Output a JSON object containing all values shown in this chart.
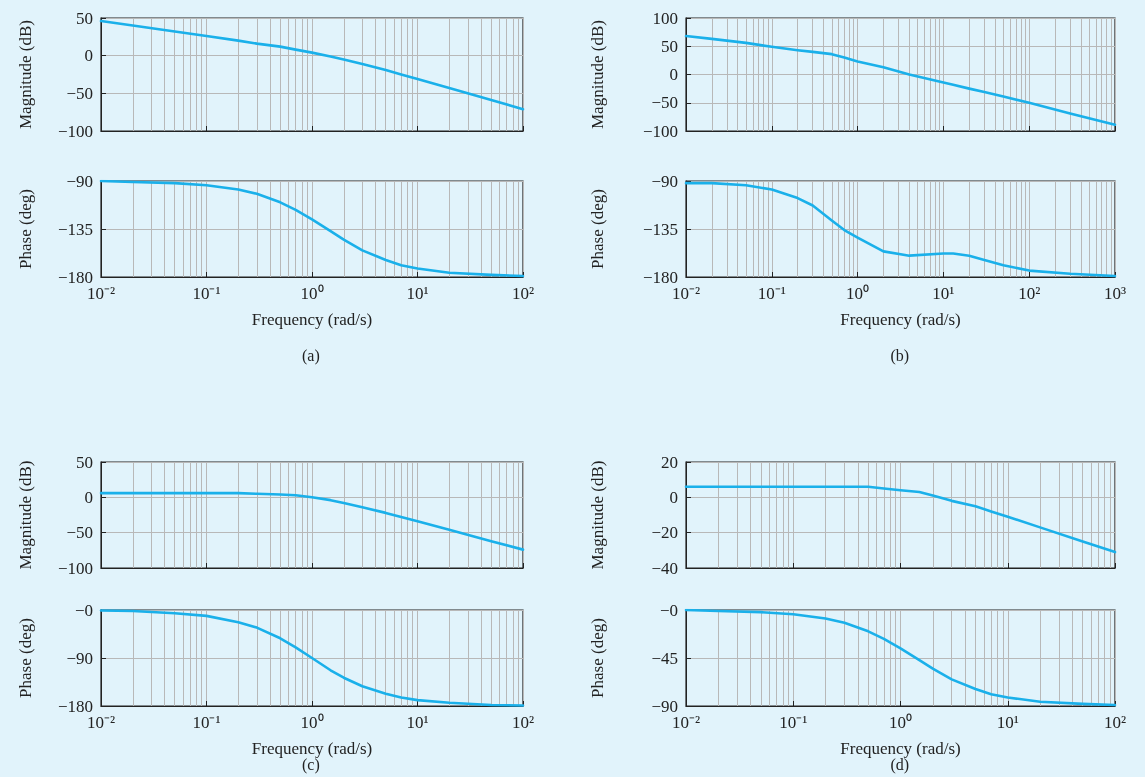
{
  "chart_data": [
    {
      "type": "line",
      "ylabel": "Magnitude (dB)",
      "log": "x",
      "grid": true,
      "marker": "none",
      "tick_labels": "y",
      "xlim": [
        0.01,
        100
      ],
      "xticks": [
        {
          "value": 0.01,
          "label": null
        },
        {
          "value": 0.1,
          "label": null
        },
        {
          "value": 1,
          "label": null
        },
        {
          "value": 10,
          "label": null
        },
        {
          "value": 100,
          "label": null
        }
      ],
      "ylim": [
        -100,
        50
      ],
      "yticks": [
        {
          "value": -100,
          "label": "−100"
        },
        {
          "value": -50,
          "label": "−50"
        },
        0,
        50
      ],
      "x": [
        0.01,
        0.02,
        0.05,
        0.1,
        0.2,
        0.3,
        0.5,
        0.7,
        1,
        1.5,
        2,
        3,
        5,
        7,
        10,
        20,
        50,
        100
      ],
      "series": [
        {
          "color": "#1ab0ea",
          "values": [
            46,
            40,
            32,
            26,
            20,
            16,
            12,
            8,
            4,
            -1,
            -5,
            -11,
            -19,
            -25,
            -31,
            -43,
            -59,
            -71
          ]
        }
      ]
    },
    {
      "type": "line",
      "ylabel": "Phase (deg)",
      "xlabel": "Frequency (rad/s)",
      "annotations": [
        "(a)"
      ],
      "log": "x",
      "grid": true,
      "marker": "none",
      "xlim": [
        0.01,
        100
      ],
      "xticks": [
        {
          "value": 0.01,
          "label": "10⁻²"
        },
        {
          "value": 0.1,
          "label": "10⁻¹"
        },
        {
          "value": 1,
          "label": "10⁰"
        },
        {
          "value": 10,
          "label": "10¹"
        },
        {
          "value": 100,
          "label": "10²"
        }
      ],
      "ylim": [
        -180,
        -90
      ],
      "yticks": [
        {
          "value": -180,
          "label": "−180"
        },
        {
          "value": -135,
          "label": "−135"
        },
        {
          "value": -90,
          "label": "−90"
        }
      ],
      "x": [
        0.01,
        0.02,
        0.05,
        0.1,
        0.2,
        0.3,
        0.5,
        0.7,
        1,
        1.5,
        2,
        3,
        5,
        7,
        10,
        20,
        50,
        100
      ],
      "series": [
        {
          "color": "#1ab0ea",
          "values": [
            -90,
            -91,
            -92,
            -94,
            -98,
            -102,
            -110,
            -117,
            -126,
            -137,
            -145,
            -155,
            -164,
            -169,
            -172,
            -176,
            -178,
            -179
          ]
        }
      ]
    },
    {
      "type": "line",
      "ylabel": "Magnitude (dB)",
      "log": "x",
      "grid": true,
      "marker": "none",
      "tick_labels": "y",
      "xlim": [
        0.01,
        1000
      ],
      "xticks": [
        {
          "value": 0.01,
          "label": null
        },
        {
          "value": 0.1,
          "label": null
        },
        {
          "value": 1,
          "label": null
        },
        {
          "value": 10,
          "label": null
        },
        {
          "value": 100,
          "label": null
        },
        {
          "value": 1000,
          "label": null
        }
      ],
      "ylim": [
        -100,
        100
      ],
      "yticks": [
        {
          "value": -100,
          "label": "−100"
        },
        {
          "value": -50,
          "label": "−50"
        },
        0,
        50,
        100
      ],
      "x": [
        0.01,
        0.02,
        0.05,
        0.1,
        0.2,
        0.3,
        0.5,
        0.7,
        1,
        2,
        4,
        10,
        13,
        20,
        30,
        50,
        100,
        300,
        1000
      ],
      "series": [
        {
          "color": "#1ab0ea",
          "values": [
            68,
            63,
            56,
            49,
            43,
            40,
            36,
            30,
            23,
            13,
            0,
            -14,
            -18,
            -25,
            -31,
            -39,
            -50,
            -69,
            -89
          ]
        }
      ]
    },
    {
      "type": "line",
      "ylabel": "Phase (deg)",
      "xlabel": "Frequency (rad/s)",
      "annotations": [
        "(b)"
      ],
      "log": "x",
      "grid": true,
      "marker": "none",
      "xlim": [
        0.01,
        1000
      ],
      "xticks": [
        {
          "value": 0.01,
          "label": "10⁻²"
        },
        {
          "value": 0.1,
          "label": "10⁻¹"
        },
        {
          "value": 1,
          "label": "10⁰"
        },
        {
          "value": 10,
          "label": "10¹"
        },
        {
          "value": 100,
          "label": "10²"
        },
        {
          "value": 1000,
          "label": "10³"
        }
      ],
      "ylim": [
        -180,
        -90
      ],
      "yticks": [
        {
          "value": -180,
          "label": "−180"
        },
        {
          "value": -135,
          "label": "−135"
        },
        {
          "value": -90,
          "label": "−90"
        }
      ],
      "x": [
        0.01,
        0.02,
        0.05,
        0.1,
        0.2,
        0.3,
        0.5,
        0.7,
        1,
        2,
        4,
        10,
        13,
        20,
        30,
        50,
        100,
        300,
        1000
      ],
      "series": [
        {
          "color": "#1ab0ea",
          "values": [
            -92,
            -92,
            -94,
            -98,
            -106,
            -113,
            -127,
            -136,
            -143,
            -156,
            -160,
            -158,
            -158,
            -160,
            -164,
            -169,
            -174,
            -177,
            -179
          ]
        }
      ]
    },
    {
      "type": "line",
      "ylabel": "Magnitude (dB)",
      "log": "x",
      "grid": true,
      "marker": "none",
      "tick_labels": "y",
      "xlim": [
        0.01,
        100
      ],
      "xticks": [
        {
          "value": 0.01,
          "label": null
        },
        {
          "value": 0.1,
          "label": null
        },
        {
          "value": 1,
          "label": null
        },
        {
          "value": 10,
          "label": null
        },
        {
          "value": 100,
          "label": null
        }
      ],
      "ylim": [
        -100,
        50
      ],
      "yticks": [
        {
          "value": -100,
          "label": "−100"
        },
        {
          "value": -50,
          "label": "−50"
        },
        0,
        50
      ],
      "x": [
        0.01,
        0.02,
        0.05,
        0.1,
        0.2,
        0.3,
        0.5,
        0.7,
        1,
        1.5,
        2,
        3,
        5,
        7,
        10,
        20,
        50,
        100
      ],
      "series": [
        {
          "color": "#1ab0ea",
          "values": [
            6,
            6,
            6,
            6,
            6,
            5,
            4,
            3,
            0,
            -4,
            -8,
            -14,
            -22,
            -28,
            -34,
            -46,
            -62,
            -74
          ]
        }
      ]
    },
    {
      "type": "line",
      "ylabel": "Phase (deg)",
      "xlabel": "Frequency (rad/s)",
      "annotations": [
        "(c)"
      ],
      "log": "x",
      "grid": true,
      "marker": "none",
      "xlim": [
        0.01,
        100
      ],
      "xticks": [
        {
          "value": 0.01,
          "label": "10⁻²"
        },
        {
          "value": 0.1,
          "label": "10⁻¹"
        },
        {
          "value": 1,
          "label": "10⁰"
        },
        {
          "value": 10,
          "label": "10¹"
        },
        {
          "value": 100,
          "label": "10²"
        }
      ],
      "ylim": [
        -180,
        0
      ],
      "yticks": [
        {
          "value": -180,
          "label": "−180"
        },
        {
          "value": -90,
          "label": "−90"
        },
        {
          "value": 0,
          "label": "−0"
        }
      ],
      "x": [
        0.01,
        0.02,
        0.05,
        0.1,
        0.2,
        0.3,
        0.5,
        0.7,
        1,
        1.5,
        2,
        3,
        5,
        7,
        10,
        20,
        50,
        100
      ],
      "series": [
        {
          "color": "#1ab0ea",
          "values": [
            -1,
            -2,
            -6,
            -11,
            -23,
            -33,
            -53,
            -70,
            -90,
            -113,
            -127,
            -143,
            -157,
            -164,
            -169,
            -174,
            -178,
            -179
          ]
        }
      ]
    },
    {
      "type": "line",
      "ylabel": "Magnitude (dB)",
      "log": "x",
      "grid": true,
      "marker": "none",
      "tick_labels": "y",
      "xlim": [
        0.01,
        100
      ],
      "xticks": [
        {
          "value": 0.01,
          "label": null
        },
        {
          "value": 0.1,
          "label": null
        },
        {
          "value": 1,
          "label": null
        },
        {
          "value": 10,
          "label": null
        },
        {
          "value": 100,
          "label": null
        }
      ],
      "ylim": [
        -40,
        20
      ],
      "yticks": [
        {
          "value": -40,
          "label": "−40"
        },
        {
          "value": -20,
          "label": "−20"
        },
        0,
        20
      ],
      "x": [
        0.01,
        0.02,
        0.05,
        0.1,
        0.2,
        0.3,
        0.5,
        0.7,
        1,
        1.5,
        2,
        3,
        5,
        7,
        10,
        20,
        50,
        100
      ],
      "series": [
        {
          "color": "#1ab0ea",
          "values": [
            6,
            6,
            6,
            6,
            6,
            6,
            6,
            5,
            4,
            3,
            1,
            -2,
            -5,
            -8,
            -11,
            -17,
            -25,
            -31
          ]
        }
      ]
    },
    {
      "type": "line",
      "ylabel": "Phase (deg)",
      "xlabel": "Frequency (rad/s)",
      "annotations": [
        "(d)"
      ],
      "log": "x",
      "grid": true,
      "marker": "none",
      "xlim": [
        0.01,
        100
      ],
      "xticks": [
        {
          "value": 0.01,
          "label": "10⁻²"
        },
        {
          "value": 0.1,
          "label": "10⁻¹"
        },
        {
          "value": 1,
          "label": "10⁰"
        },
        {
          "value": 10,
          "label": "10¹"
        },
        {
          "value": 100,
          "label": "10²"
        }
      ],
      "ylim": [
        -90,
        0
      ],
      "yticks": [
        {
          "value": -90,
          "label": "−90"
        },
        {
          "value": -45,
          "label": "−45"
        },
        {
          "value": 0,
          "label": "−0"
        }
      ],
      "x": [
        0.01,
        0.02,
        0.05,
        0.1,
        0.2,
        0.3,
        0.5,
        0.7,
        1,
        1.5,
        2,
        3,
        5,
        7,
        10,
        20,
        50,
        100
      ],
      "series": [
        {
          "color": "#1ab0ea",
          "values": [
            0,
            -1,
            -2,
            -4,
            -8,
            -12,
            -20,
            -27,
            -36,
            -47,
            -55,
            -65,
            -74,
            -79,
            -82,
            -86,
            -88,
            -89
          ]
        }
      ]
    }
  ]
}
